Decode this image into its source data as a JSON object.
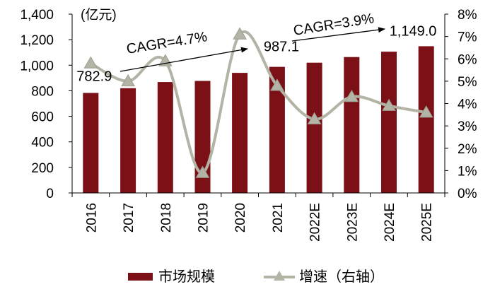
{
  "chart_data": {
    "type": "bar",
    "categories": [
      "2016",
      "2017",
      "2018",
      "2019",
      "2020",
      "2021",
      "2022E",
      "2023E",
      "2024E",
      "2025E"
    ],
    "series": [
      {
        "name": "市场规模",
        "type": "bar",
        "axis": "left",
        "color": "#7b1016",
        "values": [
          782.9,
          820,
          868,
          877,
          940,
          987.1,
          1020,
          1064,
          1106,
          1149.0
        ]
      },
      {
        "name": "增速（右轴）",
        "type": "line",
        "axis": "right",
        "color": "#b3b3a6",
        "marker": "triangle",
        "smooth": true,
        "values": [
          5.8,
          5.0,
          5.9,
          0.9,
          7.1,
          4.8,
          3.3,
          4.3,
          3.9,
          3.6
        ]
      }
    ],
    "y_left": {
      "unit": "(亿元)",
      "min": 0,
      "max": 1400,
      "ticks": [
        "0",
        "200",
        "400",
        "600",
        "800",
        "1,000",
        "1,200",
        "1,400"
      ]
    },
    "y_right": {
      "min": 0,
      "max": 8,
      "ticks": [
        "0%",
        "1%",
        "2%",
        "3%",
        "4%",
        "5%",
        "6%",
        "7%",
        "8%"
      ]
    },
    "data_labels": [
      {
        "category": "2016",
        "text": "782.9"
      },
      {
        "category": "2021",
        "text": "987.1"
      },
      {
        "category": "2025E",
        "text": "1,149.0"
      }
    ],
    "annotations": [
      {
        "text": "CAGR=4.7%",
        "from": "2016",
        "to": "2020"
      },
      {
        "text": "CAGR=3.9%",
        "from": "2021",
        "to": "2024E"
      }
    ],
    "grid": false,
    "legend_position": "bottom"
  }
}
